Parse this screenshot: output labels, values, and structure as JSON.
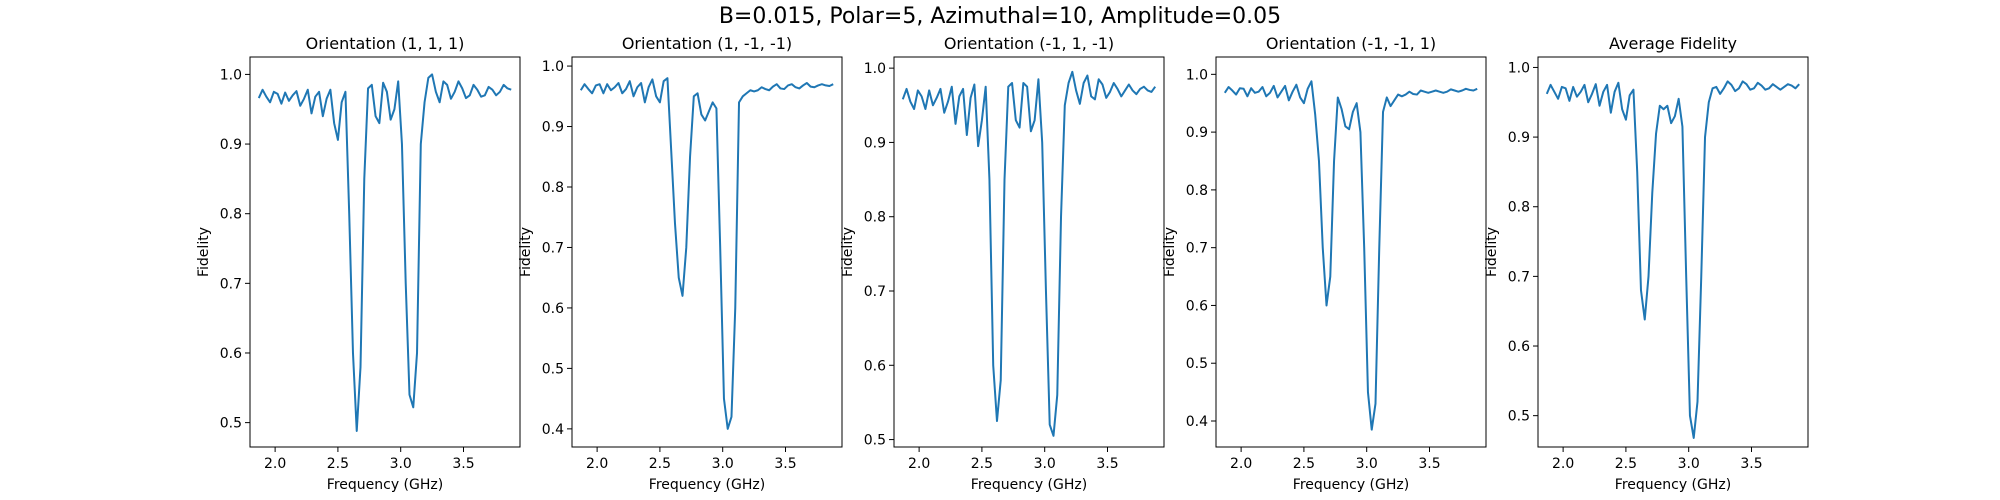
{
  "figure": {
    "suptitle": "B=0.015, Polar=5, Azimuthal=10, Amplitude=0.05"
  },
  "style": {
    "line_color": "#1f77b4",
    "axes_color": "#000000",
    "background": "#ffffff"
  },
  "chart_data": [
    {
      "type": "line",
      "title": "Orientation (1, 1, 1)",
      "xlabel": "Frequency (GHz)",
      "ylabel": "Fidelity",
      "xlim": [
        1.8,
        3.95
      ],
      "ylim": [
        0.465,
        1.025
      ],
      "xticks": [
        2.0,
        2.5,
        3.0,
        3.5
      ],
      "xtick_labels": [
        "2.0",
        "2.5",
        "3.0",
        "3.5"
      ],
      "yticks": [
        0.5,
        0.6,
        0.7,
        0.8,
        0.9,
        1.0
      ],
      "ytick_labels": [
        "0.5",
        "0.6",
        "0.7",
        "0.8",
        "0.9",
        "1.0"
      ],
      "grid": false,
      "series": [
        {
          "x": [
            1.87,
            1.9,
            1.93,
            1.96,
            1.99,
            2.02,
            2.05,
            2.08,
            2.11,
            2.14,
            2.17,
            2.2,
            2.23,
            2.26,
            2.29,
            2.32,
            2.35,
            2.38,
            2.41,
            2.44,
            2.47,
            2.5,
            2.53,
            2.56,
            2.59,
            2.62,
            2.65,
            2.68,
            2.71,
            2.74,
            2.77,
            2.8,
            2.83,
            2.86,
            2.89,
            2.92,
            2.95,
            2.98,
            3.01,
            3.04,
            3.07,
            3.1,
            3.13,
            3.16,
            3.19,
            3.22,
            3.25,
            3.28,
            3.31,
            3.34,
            3.37,
            3.4,
            3.43,
            3.46,
            3.49,
            3.52,
            3.55,
            3.58,
            3.61,
            3.64,
            3.67,
            3.7,
            3.73,
            3.76,
            3.79,
            3.82,
            3.85,
            3.88
          ],
          "y": [
            0.966,
            0.978,
            0.968,
            0.96,
            0.975,
            0.972,
            0.958,
            0.974,
            0.962,
            0.97,
            0.976,
            0.955,
            0.965,
            0.978,
            0.944,
            0.968,
            0.975,
            0.94,
            0.965,
            0.978,
            0.93,
            0.906,
            0.96,
            0.975,
            0.8,
            0.6,
            0.488,
            0.58,
            0.85,
            0.98,
            0.985,
            0.94,
            0.93,
            0.988,
            0.975,
            0.935,
            0.95,
            0.99,
            0.9,
            0.7,
            0.54,
            0.522,
            0.6,
            0.9,
            0.96,
            0.995,
            1.0,
            0.975,
            0.96,
            0.99,
            0.985,
            0.965,
            0.975,
            0.99,
            0.98,
            0.966,
            0.97,
            0.985,
            0.978,
            0.968,
            0.97,
            0.982,
            0.978,
            0.97,
            0.975,
            0.985,
            0.98,
            0.978
          ]
        }
      ]
    },
    {
      "type": "line",
      "title": "Orientation (1, -1, -1)",
      "xlabel": "Frequency (GHz)",
      "ylabel": "Fidelity",
      "xlim": [
        1.8,
        3.95
      ],
      "ylim": [
        0.37,
        1.015
      ],
      "xticks": [
        2.0,
        2.5,
        3.0,
        3.5
      ],
      "xtick_labels": [
        "2.0",
        "2.5",
        "3.0",
        "3.5"
      ],
      "yticks": [
        0.4,
        0.5,
        0.6,
        0.7,
        0.8,
        0.9,
        1.0
      ],
      "ytick_labels": [
        "0.4",
        "0.5",
        "0.6",
        "0.7",
        "0.8",
        "0.9",
        "1.0"
      ],
      "grid": false,
      "series": [
        {
          "x": [
            1.87,
            1.9,
            1.93,
            1.96,
            1.99,
            2.02,
            2.05,
            2.08,
            2.11,
            2.14,
            2.17,
            2.2,
            2.23,
            2.26,
            2.29,
            2.32,
            2.35,
            2.38,
            2.41,
            2.44,
            2.47,
            2.5,
            2.53,
            2.56,
            2.59,
            2.62,
            2.65,
            2.68,
            2.71,
            2.74,
            2.77,
            2.8,
            2.83,
            2.86,
            2.89,
            2.92,
            2.95,
            2.98,
            3.01,
            3.04,
            3.07,
            3.1,
            3.13,
            3.16,
            3.19,
            3.22,
            3.25,
            3.28,
            3.31,
            3.34,
            3.37,
            3.4,
            3.43,
            3.46,
            3.49,
            3.52,
            3.55,
            3.58,
            3.61,
            3.64,
            3.67,
            3.7,
            3.73,
            3.76,
            3.79,
            3.82,
            3.85,
            3.88
          ],
          "y": [
            0.96,
            0.97,
            0.962,
            0.955,
            0.968,
            0.97,
            0.955,
            0.97,
            0.96,
            0.965,
            0.972,
            0.955,
            0.962,
            0.975,
            0.95,
            0.965,
            0.972,
            0.94,
            0.965,
            0.978,
            0.95,
            0.94,
            0.975,
            0.98,
            0.86,
            0.74,
            0.65,
            0.62,
            0.7,
            0.85,
            0.95,
            0.955,
            0.92,
            0.91,
            0.925,
            0.94,
            0.93,
            0.7,
            0.45,
            0.4,
            0.42,
            0.6,
            0.94,
            0.95,
            0.955,
            0.96,
            0.958,
            0.96,
            0.965,
            0.962,
            0.96,
            0.966,
            0.97,
            0.963,
            0.962,
            0.968,
            0.97,
            0.965,
            0.963,
            0.968,
            0.972,
            0.966,
            0.965,
            0.968,
            0.97,
            0.968,
            0.967,
            0.97
          ]
        }
      ]
    },
    {
      "type": "line",
      "title": "Orientation (-1, 1, -1)",
      "xlabel": "Frequency (GHz)",
      "ylabel": "Fidelity",
      "xlim": [
        1.8,
        3.95
      ],
      "ylim": [
        0.49,
        1.015
      ],
      "xticks": [
        2.0,
        2.5,
        3.0,
        3.5
      ],
      "xtick_labels": [
        "2.0",
        "2.5",
        "3.0",
        "3.5"
      ],
      "yticks": [
        0.5,
        0.6,
        0.7,
        0.8,
        0.9,
        1.0
      ],
      "ytick_labels": [
        "0.5",
        "0.6",
        "0.7",
        "0.8",
        "0.9",
        "1.0"
      ],
      "grid": false,
      "series": [
        {
          "x": [
            1.87,
            1.9,
            1.93,
            1.96,
            1.99,
            2.02,
            2.05,
            2.08,
            2.11,
            2.14,
            2.17,
            2.2,
            2.23,
            2.26,
            2.29,
            2.32,
            2.35,
            2.38,
            2.41,
            2.44,
            2.47,
            2.5,
            2.53,
            2.56,
            2.59,
            2.62,
            2.65,
            2.68,
            2.71,
            2.74,
            2.77,
            2.8,
            2.83,
            2.86,
            2.89,
            2.92,
            2.95,
            2.98,
            3.01,
            3.04,
            3.07,
            3.1,
            3.13,
            3.16,
            3.19,
            3.22,
            3.25,
            3.28,
            3.31,
            3.34,
            3.37,
            3.4,
            3.43,
            3.46,
            3.49,
            3.52,
            3.55,
            3.58,
            3.61,
            3.64,
            3.67,
            3.7,
            3.73,
            3.76,
            3.79,
            3.82,
            3.85,
            3.88
          ],
          "y": [
            0.958,
            0.972,
            0.955,
            0.945,
            0.97,
            0.962,
            0.945,
            0.97,
            0.95,
            0.96,
            0.972,
            0.94,
            0.955,
            0.975,
            0.925,
            0.962,
            0.972,
            0.91,
            0.96,
            0.978,
            0.895,
            0.93,
            0.975,
            0.85,
            0.6,
            0.525,
            0.58,
            0.85,
            0.975,
            0.98,
            0.93,
            0.92,
            0.98,
            0.975,
            0.915,
            0.93,
            0.985,
            0.9,
            0.7,
            0.52,
            0.505,
            0.56,
            0.8,
            0.95,
            0.98,
            0.995,
            0.97,
            0.952,
            0.98,
            0.99,
            0.962,
            0.958,
            0.985,
            0.978,
            0.96,
            0.968,
            0.98,
            0.972,
            0.962,
            0.97,
            0.978,
            0.97,
            0.965,
            0.972,
            0.975,
            0.97,
            0.968,
            0.975
          ]
        }
      ]
    },
    {
      "type": "line",
      "title": "Orientation (-1, -1, 1)",
      "xlabel": "Frequency (GHz)",
      "ylabel": "Fidelity",
      "xlim": [
        1.8,
        3.95
      ],
      "ylim": [
        0.355,
        1.03
      ],
      "xticks": [
        2.0,
        2.5,
        3.0,
        3.5
      ],
      "xtick_labels": [
        "2.0",
        "2.5",
        "3.0",
        "3.5"
      ],
      "yticks": [
        0.4,
        0.5,
        0.6,
        0.7,
        0.8,
        0.9,
        1.0
      ],
      "ytick_labels": [
        "0.4",
        "0.5",
        "0.6",
        "0.7",
        "0.8",
        "0.9",
        "1.0"
      ],
      "grid": false,
      "series": [
        {
          "x": [
            1.87,
            1.9,
            1.93,
            1.96,
            1.99,
            2.02,
            2.05,
            2.08,
            2.11,
            2.14,
            2.17,
            2.2,
            2.23,
            2.26,
            2.29,
            2.32,
            2.35,
            2.38,
            2.41,
            2.44,
            2.47,
            2.5,
            2.53,
            2.56,
            2.59,
            2.62,
            2.65,
            2.68,
            2.71,
            2.74,
            2.77,
            2.8,
            2.83,
            2.86,
            2.89,
            2.92,
            2.95,
            2.98,
            3.01,
            3.04,
            3.07,
            3.1,
            3.13,
            3.16,
            3.19,
            3.22,
            3.25,
            3.28,
            3.31,
            3.34,
            3.37,
            3.4,
            3.43,
            3.46,
            3.49,
            3.52,
            3.55,
            3.58,
            3.61,
            3.64,
            3.67,
            3.7,
            3.73,
            3.76,
            3.79,
            3.82,
            3.85,
            3.88
          ],
          "y": [
            0.968,
            0.978,
            0.972,
            0.965,
            0.976,
            0.975,
            0.962,
            0.976,
            0.968,
            0.97,
            0.978,
            0.962,
            0.968,
            0.98,
            0.96,
            0.97,
            0.98,
            0.955,
            0.97,
            0.982,
            0.96,
            0.95,
            0.975,
            0.988,
            0.93,
            0.85,
            0.7,
            0.6,
            0.65,
            0.85,
            0.96,
            0.94,
            0.91,
            0.905,
            0.935,
            0.95,
            0.9,
            0.7,
            0.45,
            0.385,
            0.43,
            0.7,
            0.935,
            0.96,
            0.945,
            0.955,
            0.965,
            0.962,
            0.965,
            0.97,
            0.966,
            0.965,
            0.972,
            0.97,
            0.968,
            0.97,
            0.972,
            0.97,
            0.968,
            0.97,
            0.974,
            0.972,
            0.97,
            0.972,
            0.975,
            0.973,
            0.972,
            0.975
          ]
        }
      ]
    },
    {
      "type": "line",
      "title": "Average Fidelity",
      "xlabel": "Frequency (GHz)",
      "ylabel": "Fidelity",
      "xlim": [
        1.8,
        3.95
      ],
      "ylim": [
        0.455,
        1.015
      ],
      "xticks": [
        2.0,
        2.5,
        3.0,
        3.5
      ],
      "xtick_labels": [
        "2.0",
        "2.5",
        "3.0",
        "3.5"
      ],
      "yticks": [
        0.5,
        0.6,
        0.7,
        0.8,
        0.9,
        1.0
      ],
      "ytick_labels": [
        "0.5",
        "0.6",
        "0.7",
        "0.8",
        "0.9",
        "1.0"
      ],
      "grid": false,
      "series": [
        {
          "x": [
            1.87,
            1.9,
            1.93,
            1.96,
            1.99,
            2.02,
            2.05,
            2.08,
            2.11,
            2.14,
            2.17,
            2.2,
            2.23,
            2.26,
            2.29,
            2.32,
            2.35,
            2.38,
            2.41,
            2.44,
            2.47,
            2.5,
            2.53,
            2.56,
            2.59,
            2.62,
            2.65,
            2.68,
            2.71,
            2.74,
            2.77,
            2.8,
            2.83,
            2.86,
            2.89,
            2.92,
            2.95,
            2.98,
            3.01,
            3.04,
            3.07,
            3.1,
            3.13,
            3.16,
            3.19,
            3.22,
            3.25,
            3.28,
            3.31,
            3.34,
            3.37,
            3.4,
            3.43,
            3.46,
            3.49,
            3.52,
            3.55,
            3.58,
            3.61,
            3.64,
            3.67,
            3.7,
            3.73,
            3.76,
            3.79,
            3.82,
            3.85,
            3.88
          ],
          "y": [
            0.962,
            0.975,
            0.965,
            0.955,
            0.972,
            0.97,
            0.952,
            0.972,
            0.958,
            0.965,
            0.975,
            0.95,
            0.962,
            0.976,
            0.945,
            0.965,
            0.975,
            0.935,
            0.965,
            0.978,
            0.94,
            0.925,
            0.96,
            0.968,
            0.85,
            0.68,
            0.638,
            0.7,
            0.82,
            0.905,
            0.945,
            0.94,
            0.945,
            0.92,
            0.93,
            0.955,
            0.915,
            0.7,
            0.5,
            0.468,
            0.52,
            0.7,
            0.9,
            0.95,
            0.97,
            0.972,
            0.962,
            0.97,
            0.98,
            0.975,
            0.966,
            0.97,
            0.98,
            0.976,
            0.968,
            0.97,
            0.978,
            0.974,
            0.968,
            0.97,
            0.976,
            0.972,
            0.968,
            0.972,
            0.976,
            0.974,
            0.97,
            0.976
          ]
        }
      ]
    }
  ]
}
